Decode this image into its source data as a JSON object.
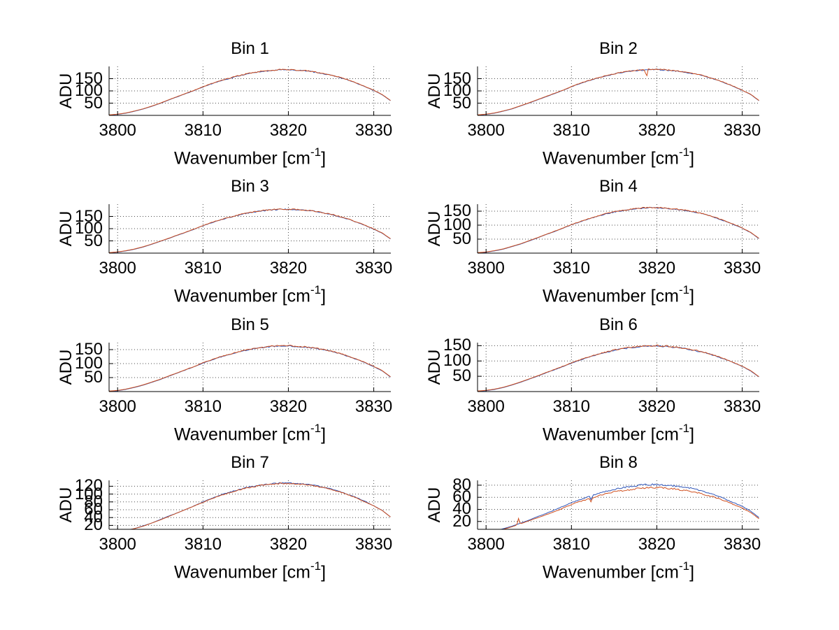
{
  "figure": {
    "background": "#ffffff",
    "description": "MATLAB-style 4x2 grid of spectra plots, ADU vs Wavenumber, Bins 1-8"
  },
  "colors": {
    "axis": "#000000",
    "grid": "#4d4d4d",
    "series_blue": "#2f55b8",
    "series_red": "#d04f1e",
    "text": "#000000"
  },
  "axes": {
    "xlabel_pre": "Wavenumber [cm",
    "xlabel_sup": "-1",
    "xlabel_post": "]",
    "ylabel": "ADU",
    "xlim": [
      3799,
      3832
    ],
    "x_start": 3799,
    "x_step": 1,
    "xticks": [
      "3800",
      "3810",
      "3820",
      "3830"
    ],
    "xtick_values": [
      3800,
      3810,
      3820,
      3830
    ],
    "grid": "on, dotted",
    "legend": "none"
  },
  "chart_data": [
    {
      "type": "line",
      "title": "Bin 1",
      "ylabel": "ADU",
      "ylim": [
        0,
        200
      ],
      "yticks": [
        50,
        100,
        150
      ],
      "noise": 2.2,
      "series": [
        {
          "name": "series-blue",
          "color": "series_blue",
          "values": [
            1,
            4,
            9,
            17,
            26,
            37,
            49,
            63,
            76,
            89,
            102,
            116,
            129,
            140,
            150,
            160,
            168,
            175,
            180,
            183,
            186,
            186,
            184,
            182,
            177,
            171,
            164,
            155,
            144,
            131,
            117,
            102,
            84,
            59
          ],
          "spikes": []
        },
        {
          "name": "series-red",
          "color": "series_red",
          "values": [
            2,
            5,
            10,
            18,
            27,
            38,
            50,
            64,
            77,
            90,
            103,
            117,
            130,
            141,
            151,
            161,
            169,
            176,
            181,
            184,
            187,
            187,
            185,
            183,
            178,
            172,
            165,
            156,
            145,
            132,
            118,
            103,
            85,
            60
          ],
          "spikes": []
        }
      ]
    },
    {
      "type": "line",
      "title": "Bin 2",
      "ylabel": "ADU",
      "ylim": [
        0,
        200
      ],
      "yticks": [
        50,
        100,
        150
      ],
      "noise": 2.2,
      "series": [
        {
          "name": "series-blue",
          "color": "series_blue",
          "values": [
            1,
            4,
            9,
            17,
            26,
            38,
            50,
            63,
            76,
            89,
            102,
            117,
            130,
            141,
            151,
            161,
            169,
            176,
            181,
            184,
            187,
            187,
            185,
            182,
            178,
            172,
            165,
            156,
            145,
            132,
            118,
            102,
            85,
            59
          ],
          "spikes": []
        },
        {
          "name": "series-red",
          "color": "series_red",
          "values": [
            2,
            5,
            10,
            18,
            27,
            39,
            51,
            64,
            77,
            90,
            103,
            118,
            131,
            142,
            152,
            162,
            170,
            177,
            182,
            185,
            188,
            188,
            186,
            183,
            179,
            173,
            166,
            157,
            146,
            133,
            119,
            103,
            86,
            60
          ],
          "spikes": [
            {
              "x": 3818.8,
              "dv": -34
            }
          ]
        }
      ]
    },
    {
      "type": "line",
      "title": "Bin 3",
      "ylabel": "ADU",
      "ylim": [
        0,
        200
      ],
      "yticks": [
        50,
        100,
        150
      ],
      "noise": 2.4,
      "series": [
        {
          "name": "series-blue",
          "color": "series_blue",
          "values": [
            1,
            4,
            9,
            16,
            25,
            36,
            48,
            60,
            73,
            85,
            98,
            112,
            124,
            135,
            145,
            154,
            162,
            168,
            173,
            176,
            179,
            179,
            177,
            175,
            171,
            165,
            158,
            149,
            139,
            126,
            113,
            98,
            81,
            57
          ],
          "spikes": []
        },
        {
          "name": "series-red",
          "color": "series_red",
          "values": [
            2,
            5,
            10,
            17,
            26,
            37,
            49,
            61,
            74,
            86,
            99,
            113,
            125,
            136,
            146,
            155,
            163,
            169,
            174,
            177,
            180,
            180,
            178,
            176,
            172,
            166,
            159,
            150,
            140,
            127,
            114,
            99,
            82,
            58
          ],
          "spikes": []
        }
      ]
    },
    {
      "type": "line",
      "title": "Bin 4",
      "ylabel": "ADU",
      "ylim": [
        0,
        175
      ],
      "yticks": [
        50,
        100,
        150
      ],
      "noise": 2.0,
      "series": [
        {
          "name": "series-blue",
          "color": "series_blue",
          "values": [
            1,
            3,
            8,
            14,
            23,
            32,
            43,
            54,
            66,
            77,
            89,
            101,
            112,
            122,
            131,
            140,
            147,
            152,
            156,
            160,
            162,
            162,
            160,
            158,
            154,
            149,
            143,
            135,
            125,
            114,
            102,
            89,
            73,
            51
          ],
          "spikes": []
        },
        {
          "name": "series-red",
          "color": "series_red",
          "values": [
            2,
            4,
            9,
            15,
            24,
            33,
            44,
            55,
            67,
            78,
            90,
            102,
            113,
            123,
            132,
            141,
            148,
            153,
            157,
            161,
            163,
            163,
            161,
            159,
            155,
            150,
            144,
            136,
            126,
            115,
            103,
            90,
            74,
            52
          ],
          "spikes": []
        }
      ]
    },
    {
      "type": "line",
      "title": "Bin 5",
      "ylabel": "ADU",
      "ylim": [
        0,
        175
      ],
      "yticks": [
        50,
        100,
        150
      ],
      "noise": 2.2,
      "series": [
        {
          "name": "series-blue",
          "color": "series_blue",
          "values": [
            1,
            3,
            8,
            15,
            23,
            33,
            43,
            55,
            66,
            78,
            89,
            102,
            113,
            123,
            132,
            140,
            147,
            153,
            157,
            161,
            163,
            163,
            161,
            159,
            155,
            150,
            144,
            136,
            126,
            115,
            103,
            89,
            74,
            51
          ],
          "spikes": []
        },
        {
          "name": "series-red",
          "color": "series_red",
          "values": [
            2,
            4,
            9,
            16,
            24,
            34,
            44,
            56,
            67,
            79,
            90,
            103,
            114,
            124,
            133,
            141,
            148,
            154,
            158,
            162,
            164,
            164,
            162,
            160,
            156,
            151,
            145,
            137,
            127,
            116,
            104,
            90,
            75,
            52
          ],
          "spikes": []
        }
      ]
    },
    {
      "type": "line",
      "title": "Bin 6",
      "ylabel": "ADU",
      "ylim": [
        0,
        160
      ],
      "yticks": [
        50,
        100,
        150
      ],
      "noise": 2.4,
      "series": [
        {
          "name": "series-blue",
          "color": "series_blue",
          "values": [
            1,
            3,
            7,
            13,
            21,
            30,
            40,
            50,
            61,
            71,
            82,
            93,
            103,
            112,
            121,
            128,
            135,
            140,
            144,
            147,
            149,
            149,
            148,
            145,
            142,
            137,
            131,
            124,
            115,
            105,
            94,
            82,
            67,
            47
          ],
          "spikes": []
        },
        {
          "name": "series-red",
          "color": "series_red",
          "values": [
            2,
            4,
            8,
            14,
            22,
            31,
            41,
            51,
            62,
            72,
            83,
            94,
            104,
            113,
            122,
            129,
            136,
            141,
            145,
            148,
            150,
            150,
            149,
            146,
            143,
            138,
            132,
            125,
            116,
            106,
            95,
            83,
            68,
            48
          ],
          "spikes": []
        }
      ]
    },
    {
      "type": "line",
      "title": "Bin 7",
      "ylabel": "ADU",
      "ylim": [
        10,
        135
      ],
      "yticks": [
        20,
        40,
        60,
        80,
        100,
        120
      ],
      "noise": 1.7,
      "series": [
        {
          "name": "series-blue",
          "color": "series_blue",
          "values": [
            1,
            3,
            7,
            12,
            19,
            26,
            35,
            44,
            52,
            61,
            70,
            80,
            89,
            97,
            104,
            110,
            116,
            120,
            124,
            126,
            128,
            128,
            127,
            125,
            122,
            118,
            113,
            107,
            99,
            91,
            81,
            70,
            58,
            41
          ],
          "spikes": []
        },
        {
          "name": "series-red",
          "color": "series_red",
          "values": [
            1,
            3,
            7,
            12,
            18,
            26,
            34,
            43,
            52,
            61,
            70,
            79,
            88,
            96,
            103,
            109,
            115,
            119,
            123,
            125,
            127,
            127,
            126,
            124,
            121,
            117,
            112,
            106,
            98,
            90,
            80,
            70,
            58,
            41
          ],
          "spikes": []
        }
      ]
    },
    {
      "type": "line",
      "title": "Bin 8",
      "ylabel": "ADU",
      "ylim": [
        7,
        88
      ],
      "yticks": [
        20,
        40,
        60,
        80
      ],
      "noise": 1.4,
      "series": [
        {
          "name": "series-blue",
          "color": "series_blue",
          "values": [
            1,
            2,
            4,
            8,
            12,
            17,
            22,
            28,
            33,
            39,
            45,
            51,
            56,
            61,
            66,
            70,
            73,
            76,
            78,
            80,
            81,
            81,
            80,
            79,
            77,
            75,
            71,
            67,
            63,
            57,
            51,
            45,
            37,
            26
          ],
          "spikes": [
            {
              "x": 3812.3,
              "dv": -6
            }
          ]
        },
        {
          "name": "series-red",
          "color": "series_red",
          "values": [
            1,
            2,
            4,
            7,
            11,
            16,
            21,
            26,
            31,
            36,
            42,
            48,
            53,
            57,
            62,
            66,
            69,
            71,
            73,
            75,
            76,
            76,
            75,
            74,
            72,
            70,
            67,
            63,
            59,
            54,
            48,
            42,
            35,
            24
          ],
          "spikes": [
            {
              "x": 3803.8,
              "dv": 10
            },
            {
              "x": 3812.3,
              "dv": -6
            }
          ]
        }
      ]
    }
  ]
}
